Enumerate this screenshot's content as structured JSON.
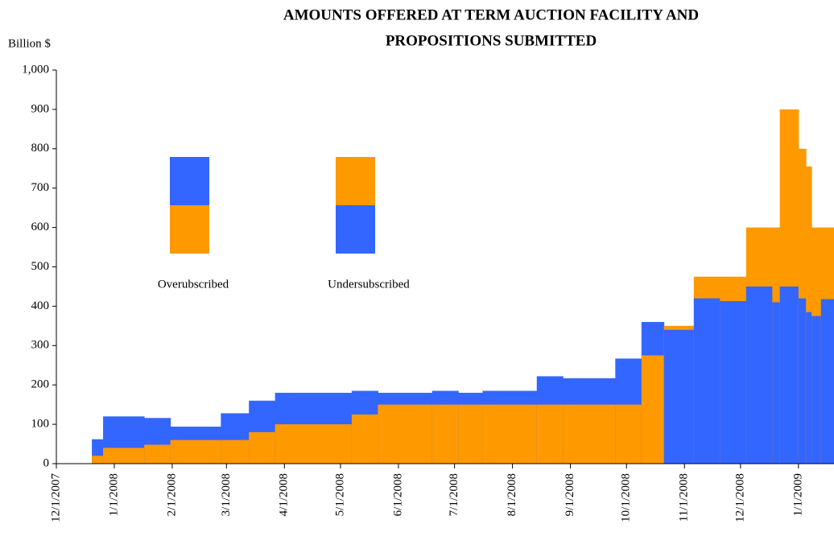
{
  "chart_data": {
    "type": "step-area-overlap",
    "title": [
      "AMOUNTS OFFERED AT TERM AUCTION FACILITY AND",
      "PROPOSITIONS SUBMITTED"
    ],
    "y_axis_label": "Billion $",
    "x": [
      "2007-12-20",
      "2007-12-26",
      "2008-01-17",
      "2008-01-31",
      "2008-02-27",
      "2008-03-13",
      "2008-03-27",
      "2008-05-07",
      "2008-05-21",
      "2008-06-19",
      "2008-07-03",
      "2008-07-16",
      "2008-08-14",
      "2008-08-28",
      "2008-09-25",
      "2008-10-09",
      "2008-10-21",
      "2008-11-06",
      "2008-11-20",
      "2008-12-04",
      "2008-12-18",
      "2008-12-22",
      "2009-01-01",
      "2009-01-05",
      "2009-01-08",
      "2009-01-13"
    ],
    "series": [
      {
        "color": "#ff9900",
        "values": [
          20,
          40,
          48,
          60,
          60,
          80,
          100,
          125,
          150,
          150,
          150,
          150,
          150,
          150,
          150,
          275,
          350,
          475,
          475,
          600,
          600,
          900,
          800,
          755,
          600,
          600
        ]
      },
      {
        "color": "#3366ff",
        "values": [
          62,
          120,
          116,
          94,
          128,
          160,
          180,
          185,
          180,
          185,
          180,
          185,
          222,
          217,
          267,
          360,
          340,
          420,
          413,
          450,
          410,
          450,
          420,
          385,
          375,
          418
        ]
      }
    ],
    "legend": [
      {
        "label": "Overubscribed",
        "top": 1,
        "bottom": 0
      },
      {
        "label": "Undersubscribed",
        "top": 0,
        "bottom": 1
      }
    ],
    "xlim": [
      "2007-12-01",
      "2009-01-20"
    ],
    "xticks": [
      {
        "value": "2007-12-01",
        "label": "12/1/2007"
      },
      {
        "value": "2008-01-01",
        "label": "1/1/2008"
      },
      {
        "value": "2008-02-01",
        "label": "2/1/2008"
      },
      {
        "value": "2008-03-01",
        "label": "3/1/2008"
      },
      {
        "value": "2008-04-01",
        "label": "4/1/2008"
      },
      {
        "value": "2008-05-01",
        "label": "5/1/2008"
      },
      {
        "value": "2008-06-01",
        "label": "6/1/2008"
      },
      {
        "value": "2008-07-01",
        "label": "7/1/2008"
      },
      {
        "value": "2008-08-01",
        "label": "8/1/2008"
      },
      {
        "value": "2008-09-01",
        "label": "9/1/2008"
      },
      {
        "value": "2008-10-01",
        "label": "10/1/2008"
      },
      {
        "value": "2008-11-01",
        "label": "11/1/2008"
      },
      {
        "value": "2008-12-01",
        "label": "12/1/2008"
      },
      {
        "value": "2009-01-01",
        "label": "1/1/2009"
      }
    ],
    "ylim": [
      0,
      1000
    ],
    "yticks": [
      0,
      100,
      200,
      300,
      400,
      500,
      600,
      700,
      800,
      900,
      {
        "value": 1000,
        "label": "1,000"
      }
    ]
  }
}
